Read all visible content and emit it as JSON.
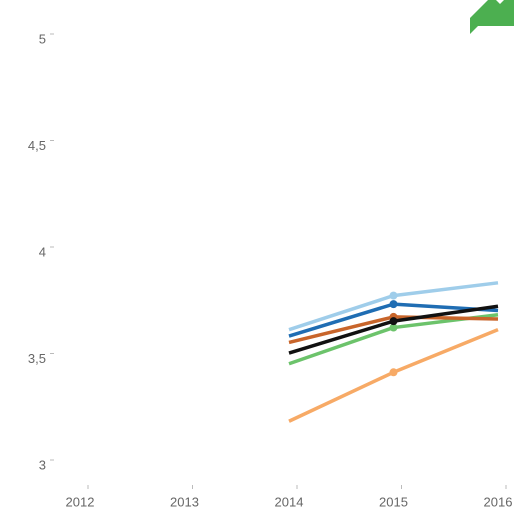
{
  "chart_data": {
    "type": "line",
    "categories": [
      "2012",
      "2013",
      "2014",
      "2015",
      "2016"
    ],
    "series": [
      {
        "color": "#f7aa66",
        "values": [
          null,
          null,
          3.21,
          3.44,
          3.64
        ]
      },
      {
        "color": "#6cc36b",
        "values": [
          null,
          null,
          3.48,
          3.65,
          3.71
        ]
      },
      {
        "color": "#c8652b",
        "values": [
          null,
          null,
          3.58,
          3.7,
          3.69
        ]
      },
      {
        "color": "#9fcdea",
        "values": [
          null,
          null,
          3.64,
          3.8,
          3.86
        ]
      },
      {
        "color": "#1f6db3",
        "values": [
          null,
          null,
          3.61,
          3.76,
          3.73
        ]
      },
      {
        "color": "#111111",
        "values": [
          null,
          null,
          3.53,
          3.68,
          3.75
        ]
      }
    ],
    "ylim": [
      3,
      5
    ],
    "yticks": [
      3,
      {
        "value": 3.5,
        "label": "3,5"
      },
      4,
      {
        "value": 4.5,
        "label": "4,5"
      },
      5
    ],
    "marker_category": 3
  }
}
